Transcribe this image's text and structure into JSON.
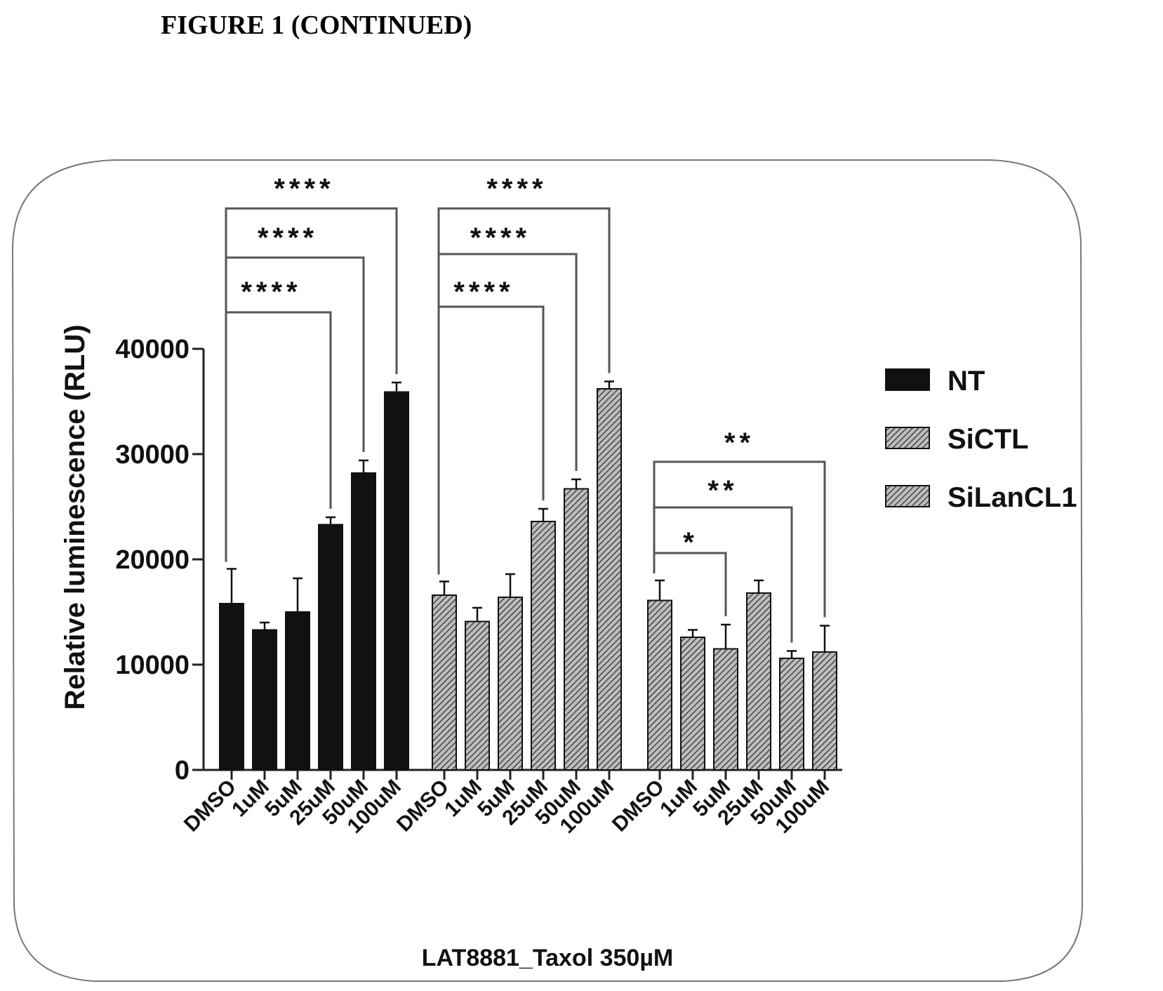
{
  "figure_heading": "FIGURE 1 (CONTINUED)",
  "chart_data": {
    "type": "bar",
    "title": "",
    "xlabel": "LAT8881_Taxol 350µM",
    "ylabel": "Relative luminescence (RLU)",
    "ylim": [
      0,
      40000
    ],
    "yticks": [
      "0",
      "10000",
      "20000",
      "30000",
      "40000"
    ],
    "categories": [
      "DMSO",
      "1uM",
      "5uM",
      "25uM",
      "50uM",
      "100uM"
    ],
    "legend_position": "right",
    "series": [
      {
        "name": "NT",
        "color": "#111111",
        "pattern": "solid",
        "values": [
          15800,
          13300,
          15000,
          23300,
          28200,
          35900
        ],
        "errors": [
          3300,
          700,
          3200,
          700,
          1200,
          900
        ]
      },
      {
        "name": "SiCTL",
        "color": "#8a8a8a",
        "pattern": "hatch",
        "values": [
          16600,
          14100,
          16400,
          23600,
          26700,
          36200
        ],
        "errors": [
          1300,
          1300,
          2200,
          1200,
          900,
          700
        ]
      },
      {
        "name": "SiLanCL1",
        "color": "#8a8a8a",
        "pattern": "hatch",
        "values": [
          16100,
          12600,
          11500,
          16800,
          10600,
          11200
        ],
        "errors": [
          1900,
          700,
          2300,
          1200,
          700,
          2500
        ]
      }
    ],
    "significance": [
      {
        "series": 0,
        "from": 0,
        "to": 3,
        "label": "****"
      },
      {
        "series": 0,
        "from": 0,
        "to": 4,
        "label": "****"
      },
      {
        "series": 0,
        "from": 0,
        "to": 5,
        "label": "****"
      },
      {
        "series": 1,
        "from": 0,
        "to": 3,
        "label": "****"
      },
      {
        "series": 1,
        "from": 0,
        "to": 4,
        "label": "****"
      },
      {
        "series": 1,
        "from": 0,
        "to": 5,
        "label": "****"
      },
      {
        "series": 2,
        "from": 0,
        "to": 2,
        "label": "*"
      },
      {
        "series": 2,
        "from": 0,
        "to": 4,
        "label": "**"
      },
      {
        "series": 2,
        "from": 0,
        "to": 5,
        "label": "**"
      }
    ]
  }
}
